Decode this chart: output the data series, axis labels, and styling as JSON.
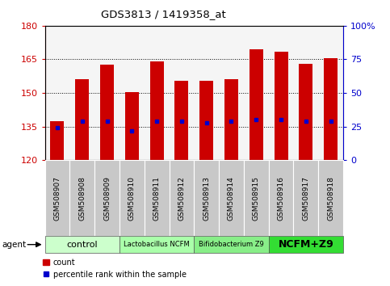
{
  "title": "GDS3813 / 1419358_at",
  "samples": [
    "GSM508907",
    "GSM508908",
    "GSM508909",
    "GSM508910",
    "GSM508911",
    "GSM508912",
    "GSM508913",
    "GSM508914",
    "GSM508915",
    "GSM508916",
    "GSM508917",
    "GSM508918"
  ],
  "counts": [
    137.5,
    156.0,
    162.5,
    150.5,
    164.0,
    155.5,
    155.5,
    156.0,
    169.5,
    168.5,
    163.0,
    165.5
  ],
  "percentile_values_pct": [
    24,
    29,
    29,
    22,
    29,
    29,
    28,
    29,
    30,
    30,
    29,
    29
  ],
  "y_min": 120,
  "y_max": 180,
  "y_ticks_left": [
    120,
    135,
    150,
    165,
    180
  ],
  "y_ticks_right": [
    0,
    25,
    50,
    75,
    100
  ],
  "bar_color": "#cc0000",
  "percentile_color": "#0000cc",
  "groups": [
    {
      "label": "control",
      "start": 0,
      "end": 3,
      "color": "#ccffcc",
      "bold": false,
      "fontsize": 8
    },
    {
      "label": "Lactobacillus NCFM",
      "start": 3,
      "end": 6,
      "color": "#aaffaa",
      "bold": false,
      "fontsize": 6
    },
    {
      "label": "Bifidobacterium Z9",
      "start": 6,
      "end": 9,
      "color": "#88ee88",
      "bold": false,
      "fontsize": 6
    },
    {
      "label": "NCFM+Z9",
      "start": 9,
      "end": 12,
      "color": "#33dd33",
      "bold": true,
      "fontsize": 9
    }
  ],
  "left_axis_color": "#cc0000",
  "right_axis_color": "#0000cc",
  "tick_label_bg": "#c8c8c8",
  "tick_label_fontsize": 6.5,
  "plot_facecolor": "#f5f5f5"
}
